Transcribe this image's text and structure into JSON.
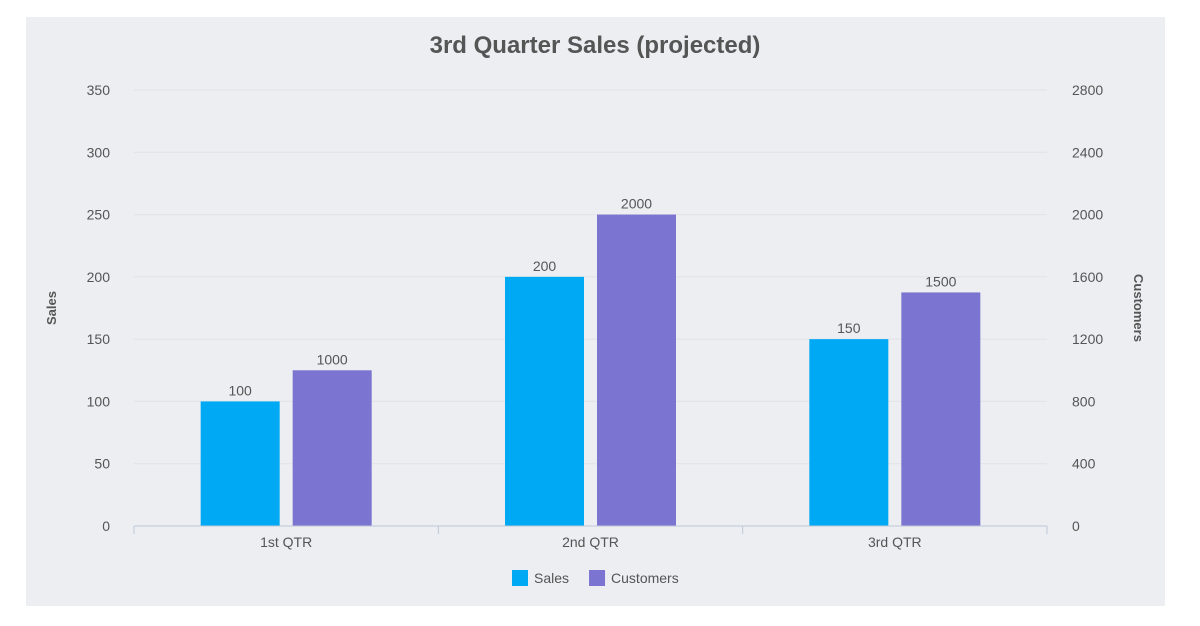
{
  "chart_data": {
    "type": "bar",
    "title": "3rd Quarter Sales (projected)",
    "categories": [
      "1st QTR",
      "2nd QTR",
      "3rd QTR"
    ],
    "series": [
      {
        "name": "Sales",
        "axis": "left",
        "color": "#00a9f4",
        "values": [
          100,
          200,
          150
        ]
      },
      {
        "name": "Customers",
        "axis": "right",
        "color": "#7b74d0",
        "values": [
          1000,
          2000,
          1500
        ]
      }
    ],
    "y_left": {
      "label": "Sales",
      "ylim": [
        0,
        350
      ],
      "ticks": [
        0,
        50,
        100,
        150,
        200,
        250,
        300,
        350
      ]
    },
    "y_right": {
      "label": "Customers",
      "ylim": [
        0,
        2800
      ],
      "ticks": [
        0,
        400,
        800,
        1200,
        1600,
        2000,
        2400,
        2800
      ]
    },
    "grid": true,
    "legend": "bottom-center"
  }
}
